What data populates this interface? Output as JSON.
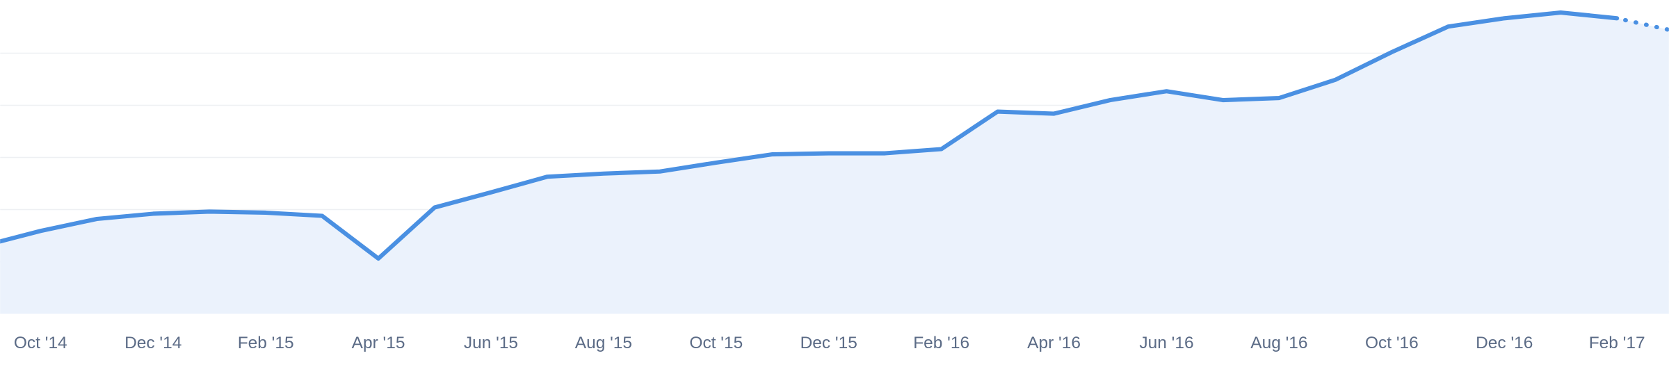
{
  "chart_data": {
    "type": "area",
    "categories": [
      null,
      "Oct '14",
      null,
      "Dec '14",
      null,
      "Feb '15",
      null,
      "Apr '15",
      null,
      "Jun '15",
      null,
      "Aug '15",
      null,
      "Oct '15",
      null,
      "Dec '15",
      null,
      "Feb '16",
      null,
      "Apr '16",
      null,
      "Jun '16",
      null,
      "Aug '16",
      null,
      "Oct '16",
      null,
      "Dec '16",
      null,
      "Feb '17",
      null
    ],
    "values": [
      1.31,
      1.59,
      1.82,
      1.92,
      1.96,
      1.94,
      1.88,
      1.06,
      2.04,
      2.33,
      2.63,
      2.69,
      2.73,
      2.9,
      3.06,
      3.08,
      3.08,
      3.16,
      3.88,
      3.84,
      4.1,
      4.27,
      4.1,
      4.14,
      4.49,
      5.02,
      5.51,
      5.67,
      5.78,
      5.67,
      5.43
    ],
    "color": "#4a90e2",
    "fill_color": "#ebf2fc",
    "dashed_segments": 1,
    "ylim": [
      0,
      6
    ],
    "yticks": [
      1,
      2,
      3,
      4,
      5
    ],
    "grid": true
  }
}
